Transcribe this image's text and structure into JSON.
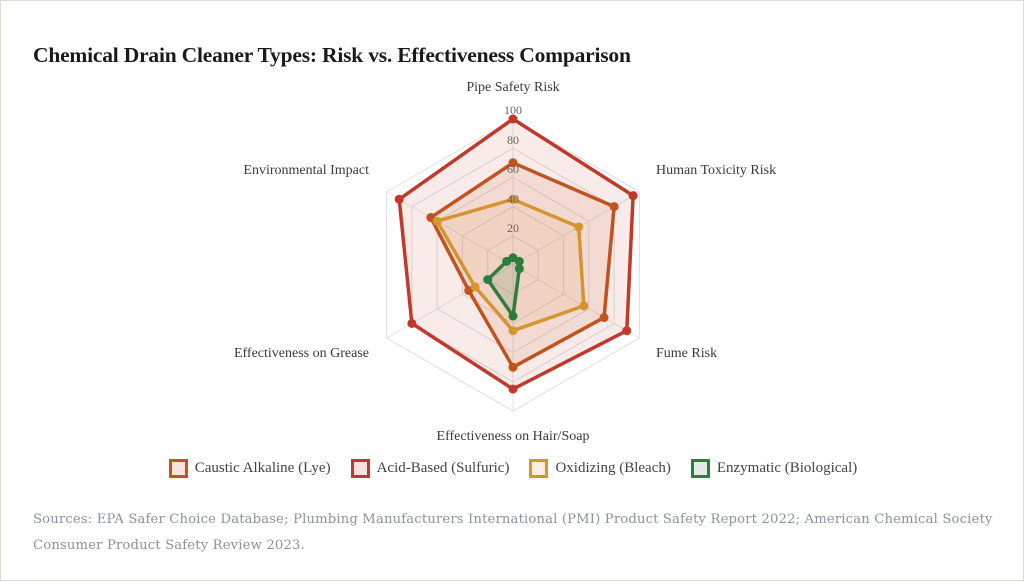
{
  "chart_data": {
    "type": "radar",
    "title": "Chemical Drain Cleaner Types: Risk vs. Effectiveness Comparison",
    "axes": [
      "Pipe Safety Risk",
      "Human Toxicity Risk",
      "Fume Risk",
      "Effectiveness on Hair/Soap",
      "Effectiveness on Grease",
      "Environmental Impact"
    ],
    "range": [
      0,
      100
    ],
    "ticks": [
      20,
      40,
      60,
      80,
      100
    ],
    "grid": true,
    "legend_position": "bottom",
    "series": [
      {
        "name": "Caustic Alkaline (Lye)",
        "color": "#c0561f",
        "fill": "rgba(192,86,31,0.10)",
        "values": [
          70,
          80,
          72,
          70,
          35,
          65
        ]
      },
      {
        "name": "Acid-Based (Sulfuric)",
        "color": "#c0392b",
        "fill": "rgba(192,57,43,0.10)",
        "values": [
          100,
          95,
          90,
          85,
          80,
          90
        ]
      },
      {
        "name": "Oxidizing (Bleach)",
        "color": "#d4952e",
        "fill": "rgba(212,149,46,0.10)",
        "values": [
          45,
          52,
          56,
          45,
          30,
          60
        ]
      },
      {
        "name": "Enzymatic (Biological)",
        "color": "#2e7d3e",
        "fill": "rgba(46,125,62,0.15)",
        "values": [
          5,
          5,
          5,
          35,
          20,
          5
        ]
      }
    ]
  },
  "header": {
    "title": "Chemical Drain Cleaner Types: Risk vs. Effectiveness Comparison"
  },
  "axis_labels": {
    "pipe": "Pipe Safety Risk",
    "human": "Human Toxicity Risk",
    "fume": "Fume Risk",
    "hair": "Effectiveness on Hair/Soap",
    "grease": "Effectiveness on Grease",
    "env": "Environmental Impact"
  },
  "ticks": {
    "t20": "20",
    "t40": "40",
    "t60": "60",
    "t80": "80",
    "t100": "100"
  },
  "legend": {
    "items": [
      {
        "label": "Caustic Alkaline (Lye)",
        "color": "#c0561f"
      },
      {
        "label": "Acid-Based (Sulfuric)",
        "color": "#c0392b"
      },
      {
        "label": "Oxidizing (Bleach)",
        "color": "#d4952e"
      },
      {
        "label": "Enzymatic (Biological)",
        "color": "#2e7d3e"
      }
    ]
  },
  "footer": {
    "sources": "Sources: EPA Safer Choice Database; Plumbing Manufacturers International (PMI) Product Safety Report 2022; American Chemical Society Consumer Product Safety Review 2023."
  }
}
